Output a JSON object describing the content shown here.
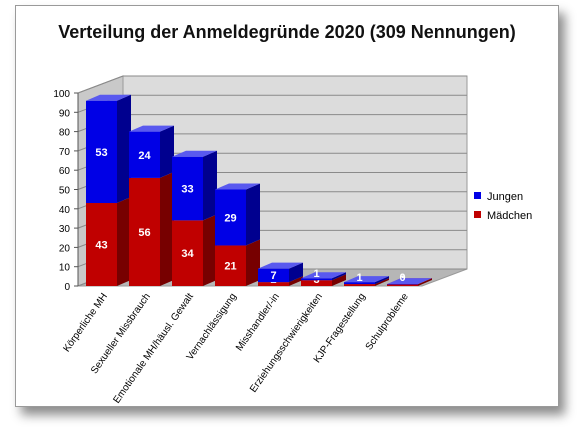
{
  "chart_data": {
    "type": "bar",
    "stacked": true,
    "title": "Verteilung der Anmeldegründe 2020 (309 Nennungen)",
    "categories": [
      "Körperliche MH",
      "Sexueller Missbrauch",
      "Emotionale MH/häusl. Gewalt",
      "Vernachlässigung",
      "Misshandler/-in",
      "Erziehungsschwierigkeiten",
      "KJP-Fragestellung",
      "Schulprobleme"
    ],
    "series": [
      {
        "name": "Mädchen",
        "color": "#c00000",
        "values": [
          43,
          56,
          34,
          21,
          2,
          3,
          1,
          1
        ]
      },
      {
        "name": "Jungen",
        "color": "#0000e6",
        "values": [
          53,
          24,
          33,
          29,
          7,
          1,
          1,
          0
        ]
      }
    ],
    "ylim": [
      0,
      100
    ],
    "yticks": [
      0,
      10,
      20,
      30,
      40,
      50,
      60,
      70,
      80,
      90,
      100
    ],
    "grid": true,
    "legend_position": "right"
  }
}
